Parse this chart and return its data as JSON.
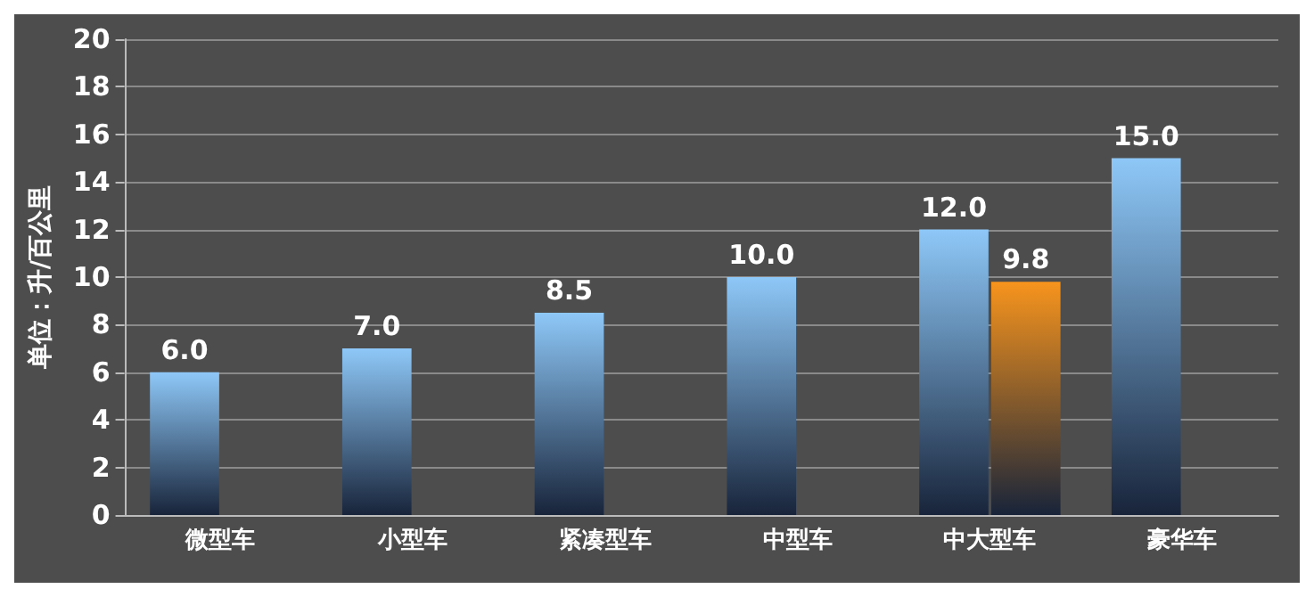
{
  "chart_data": {
    "type": "bar",
    "ylabel": "单位：升/百公里",
    "categories": [
      "微型车",
      "小型车",
      "紧凑型车",
      "中型车",
      "中大型车",
      "豪华车"
    ],
    "series": [
      {
        "color": "#8ec8f8",
        "values": [
          6,
          7,
          8.5,
          10,
          12,
          15
        ],
        "value_labels": [
          "6.0",
          "7.0",
          "8.5",
          "10.0",
          "12.0",
          "15.0"
        ]
      },
      {
        "color": "#f7941d",
        "values": [
          null,
          null,
          null,
          null,
          9.8,
          null
        ],
        "value_labels": [
          null,
          null,
          null,
          null,
          "9.8",
          null
        ]
      }
    ],
    "ylim": [
      0,
      20
    ],
    "yticks": [
      0,
      2,
      4,
      6,
      8,
      10,
      12,
      14,
      16,
      18,
      20
    ],
    "grid": "y"
  }
}
